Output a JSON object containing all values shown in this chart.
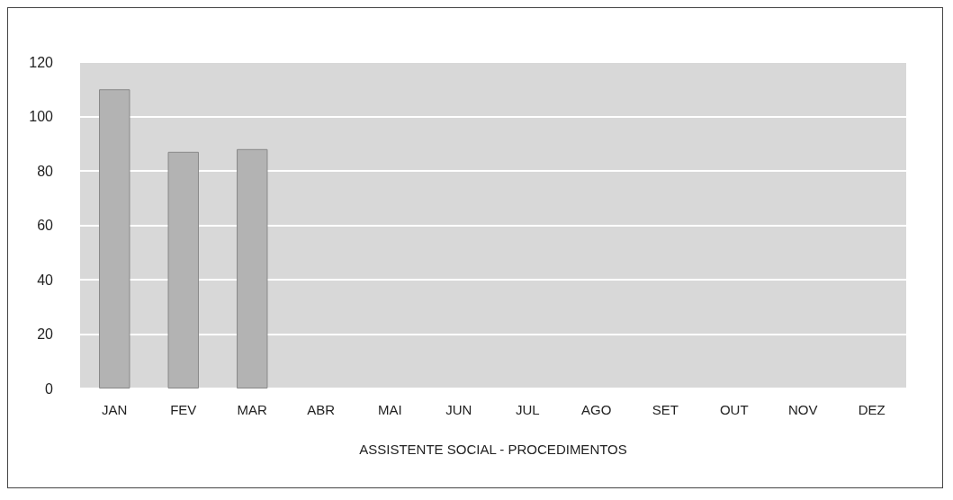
{
  "chart_data": {
    "type": "bar",
    "xlabel": "ASSISTENTE SOCIAL - PROCEDIMENTOS",
    "categories": [
      "JAN",
      "FEV",
      "MAR",
      "ABR",
      "MAI",
      "JUN",
      "JUL",
      "AGO",
      "SET",
      "OUT",
      "NOV",
      "DEZ"
    ],
    "values": [
      110,
      87,
      88,
      null,
      null,
      null,
      null,
      null,
      null,
      null,
      null,
      null
    ],
    "color": "#b3b3b3",
    "ylim": [
      0,
      120
    ],
    "yticks": [
      0,
      20,
      40,
      60,
      80,
      100,
      120
    ],
    "grid": "y"
  }
}
